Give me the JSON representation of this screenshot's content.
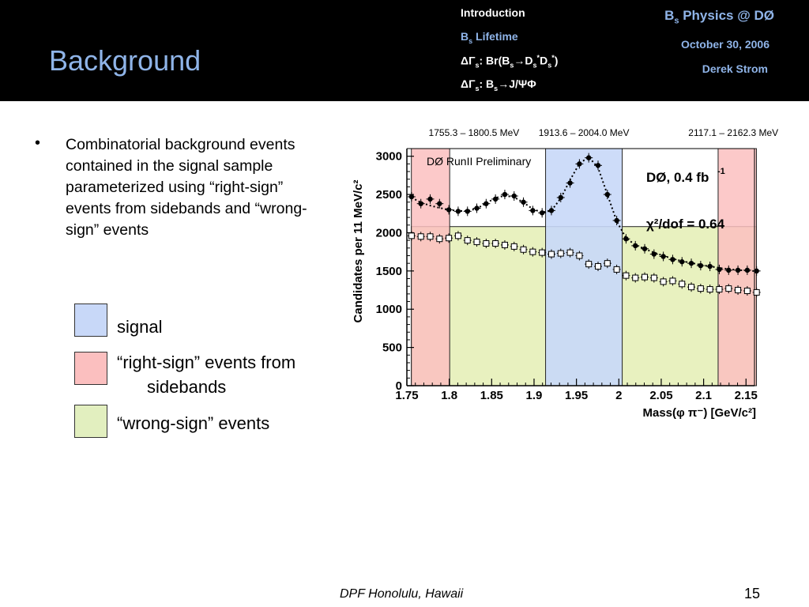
{
  "slide": {
    "title": "Background",
    "page_number": "15",
    "footer": "DPF Honolulu, Hawaii"
  },
  "nav": {
    "item1": "Introduction",
    "item2_main": "B",
    "item2_sub": "s",
    "item2_rest": " Lifetime",
    "item3": "ΔΓ",
    "item3_sub": "s",
    "item3_rest_a": ": Br(B",
    "item3_sub2": "s",
    "item3_rest_b": "→D",
    "item3_sub3": "s",
    "item3_sup3": "*",
    "item3_rest_c": "D",
    "item3_sub4": "s",
    "item3_sup4": "*",
    "item3_rest_d": ")",
    "item4": "ΔΓ",
    "item4_sub": "s",
    "item4_rest_a": ": B",
    "item4_sub2": "s",
    "item4_rest_b": "→J/ΨΦ"
  },
  "header_right": {
    "line1_main": "B",
    "line1_sub": "s",
    "line1_rest": " Physics @ DØ",
    "date": "October 30, 2006",
    "author": "Derek Strom"
  },
  "bullet": {
    "marker": "•",
    "text": "Combinatorial background events contained in the signal sample parameterized using “right-sign” events from sidebands and “wrong-sign” events"
  },
  "legend": {
    "signal": "signal",
    "right_sign_line1": "“right-sign” events from",
    "right_sign_line2": "sidebands",
    "wrong_sign": "“wrong-sign” events",
    "colors": {
      "signal": "#c8d8f8",
      "right_sign": "#fbbfbf",
      "wrong_sign": "#e2efbf"
    }
  },
  "chart_data": {
    "type": "scatter",
    "top_labels": [
      "1755.3 – 1800.5 MeV",
      "1913.6 – 2004.0 MeV",
      "2117.1 – 2162.3 MeV"
    ],
    "annotation": "DØ RunII Preliminary",
    "experiment_label": "DØ,  0.4 fb",
    "experiment_sup": "-1",
    "chi2_label": "χ²/dof = 0.64",
    "ylabel": "Candidates per 11 MeV/c²",
    "xlabel": "Mass(φ π⁻) [GeV/c²]",
    "xlim": [
      1.75,
      2.16
    ],
    "ylim": [
      0,
      3100
    ],
    "xticks": [
      "1.75",
      "1.8",
      "1.85",
      "1.9",
      "1.95",
      "2",
      "2.05",
      "2.1",
      "2.15"
    ],
    "xtick_values": [
      1.75,
      1.8,
      1.85,
      1.9,
      1.95,
      2.0,
      2.05,
      2.1,
      2.15
    ],
    "yticks": [
      "0",
      "500",
      "1000",
      "1500",
      "2000",
      "2500",
      "3000"
    ],
    "ytick_values": [
      0,
      500,
      1000,
      1500,
      2000,
      2500,
      3000
    ],
    "regions": [
      {
        "name": "right-sign-left",
        "x0": 1.7553,
        "x1": 1.8005,
        "y1": 3100,
        "color": "#fbbfbf",
        "opacity": 0.85
      },
      {
        "name": "signal",
        "x0": 1.9136,
        "x1": 2.004,
        "y1": 3100,
        "color": "#c8d8f8",
        "opacity": 0.9
      },
      {
        "name": "right-sign-right",
        "x0": 2.1171,
        "x1": 2.1623,
        "y1": 3100,
        "color": "#fbbfbf",
        "opacity": 0.85
      },
      {
        "name": "wrong-sign-band",
        "x0": 1.7553,
        "x1": 2.1623,
        "y1": 2080,
        "color": "#dce99c",
        "opacity": 0.65
      }
    ],
    "series": [
      {
        "name": "right-sign",
        "x": [
          1.7555,
          1.7665,
          1.7775,
          1.7885,
          1.7995,
          1.8105,
          1.8215,
          1.8325,
          1.8435,
          1.8545,
          1.8655,
          1.8765,
          1.8875,
          1.8985,
          1.9095,
          1.9205,
          1.9315,
          1.9425,
          1.9535,
          1.9645,
          1.9755,
          1.9865,
          1.9975,
          2.0085,
          2.0195,
          2.0305,
          2.0415,
          2.0525,
          2.0635,
          2.0745,
          2.0855,
          2.0965,
          2.1075,
          2.1185,
          2.1295,
          2.1405,
          2.1515,
          2.1625
        ],
        "values": [
          2470,
          2380,
          2440,
          2380,
          2300,
          2280,
          2280,
          2320,
          2380,
          2440,
          2500,
          2480,
          2400,
          2290,
          2260,
          2290,
          2460,
          2650,
          2900,
          2980,
          2880,
          2500,
          2160,
          1920,
          1830,
          1790,
          1720,
          1690,
          1650,
          1620,
          1600,
          1570,
          1560,
          1520,
          1510,
          1510,
          1510,
          1500
        ],
        "marker": "filled"
      },
      {
        "name": "wrong-sign",
        "x": [
          1.7555,
          1.7665,
          1.7775,
          1.7885,
          1.7995,
          1.8105,
          1.8215,
          1.8325,
          1.8435,
          1.8545,
          1.8655,
          1.8765,
          1.8875,
          1.8985,
          1.9095,
          1.9205,
          1.9315,
          1.9425,
          1.9535,
          1.9645,
          1.9755,
          1.9865,
          1.9975,
          2.0085,
          2.0195,
          2.0305,
          2.0415,
          2.0525,
          2.0635,
          2.0745,
          2.0855,
          2.0965,
          2.1075,
          2.1185,
          2.1295,
          2.1405,
          2.1515,
          2.1625
        ],
        "values": [
          1960,
          1950,
          1950,
          1920,
          1930,
          1960,
          1900,
          1880,
          1860,
          1860,
          1840,
          1820,
          1780,
          1750,
          1740,
          1720,
          1730,
          1740,
          1700,
          1590,
          1560,
          1600,
          1520,
          1440,
          1410,
          1420,
          1410,
          1360,
          1370,
          1330,
          1290,
          1270,
          1260,
          1260,
          1270,
          1250,
          1240,
          1220
        ],
        "marker": "open"
      }
    ],
    "fit_y_display": [
      2460,
      2395,
      2355,
      2325,
      2300,
      2285,
      2285,
      2315,
      2385,
      2455,
      2485,
      2465,
      2395,
      2310,
      2265,
      2290,
      2450,
      2690,
      2905,
      2990,
      2850,
      2500,
      2150,
      1930,
      1840,
      1790,
      1740,
      1700,
      1660,
      1630,
      1605,
      1580,
      1560,
      1540,
      1525,
      1512,
      1505,
      1498
    ]
  }
}
